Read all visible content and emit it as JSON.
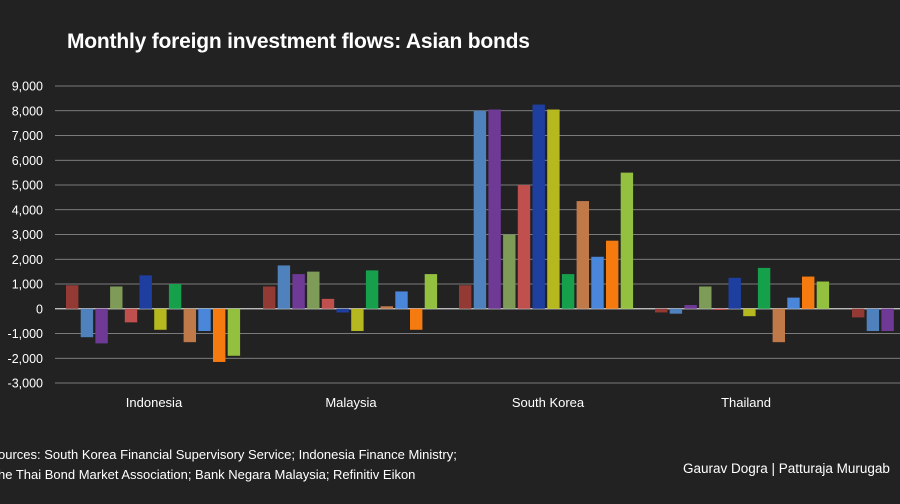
{
  "chart_data": {
    "type": "bar",
    "title": "Monthly foreign investment flows: Asian bonds",
    "xlabel": "",
    "ylabel": "",
    "ylim": [
      -3000,
      9000
    ],
    "yticks": [
      -3000,
      -2000,
      -1000,
      0,
      1000,
      2000,
      3000,
      4000,
      5000,
      6000,
      7000,
      8000,
      9000
    ],
    "ytick_labels": [
      "-3,000",
      "-2,000",
      "-1,000",
      "0",
      "1,000",
      "2,000",
      "3,000",
      "4,000",
      "5,000",
      "6,000",
      "7,000",
      "8,000",
      "9,000"
    ],
    "grid": true,
    "categories": [
      "Indonesia",
      "Malaysia",
      "South Korea",
      "Thailand",
      ""
    ],
    "series_colors": [
      "#933a34",
      "#4f81bd",
      "#6f3a96",
      "#7f9b58",
      "#c0504d",
      "#1f3fa0",
      "#b5b81e",
      "#17a04b",
      "#c07a4a",
      "#4a86d9",
      "#f57a10",
      "#94c040"
    ],
    "series": [
      {
        "values": [
          950,
          900,
          950,
          -150,
          -350
        ]
      },
      {
        "values": [
          -1150,
          1750,
          8000,
          -200,
          -900
        ]
      },
      {
        "values": [
          -1400,
          1400,
          8050,
          150,
          -900
        ]
      },
      {
        "values": [
          900,
          1500,
          3000,
          900,
          null
        ]
      },
      {
        "values": [
          -550,
          400,
          5000,
          -50,
          null
        ]
      },
      {
        "values": [
          1350,
          -150,
          8250,
          1250,
          null
        ]
      },
      {
        "values": [
          -850,
          -900,
          8050,
          -300,
          null
        ]
      },
      {
        "values": [
          1000,
          1550,
          1400,
          1650,
          null
        ]
      },
      {
        "values": [
          -1350,
          100,
          4350,
          -1350,
          null
        ]
      },
      {
        "values": [
          -900,
          700,
          2100,
          450,
          null
        ]
      },
      {
        "values": [
          -2150,
          -850,
          2750,
          1300,
          null
        ]
      },
      {
        "values": [
          -1900,
          1400,
          5500,
          1100,
          null
        ]
      }
    ]
  },
  "footer": {
    "source_line1": "ources: South Korea Financial Supervisory Service; Indonesia Finance Ministry;",
    "source_line2": "he Thai Bond Market Association; Bank Negara Malaysia; Refinitiv Eikon",
    "credit": "Gaurav Dogra | Patturaja Murugab"
  }
}
